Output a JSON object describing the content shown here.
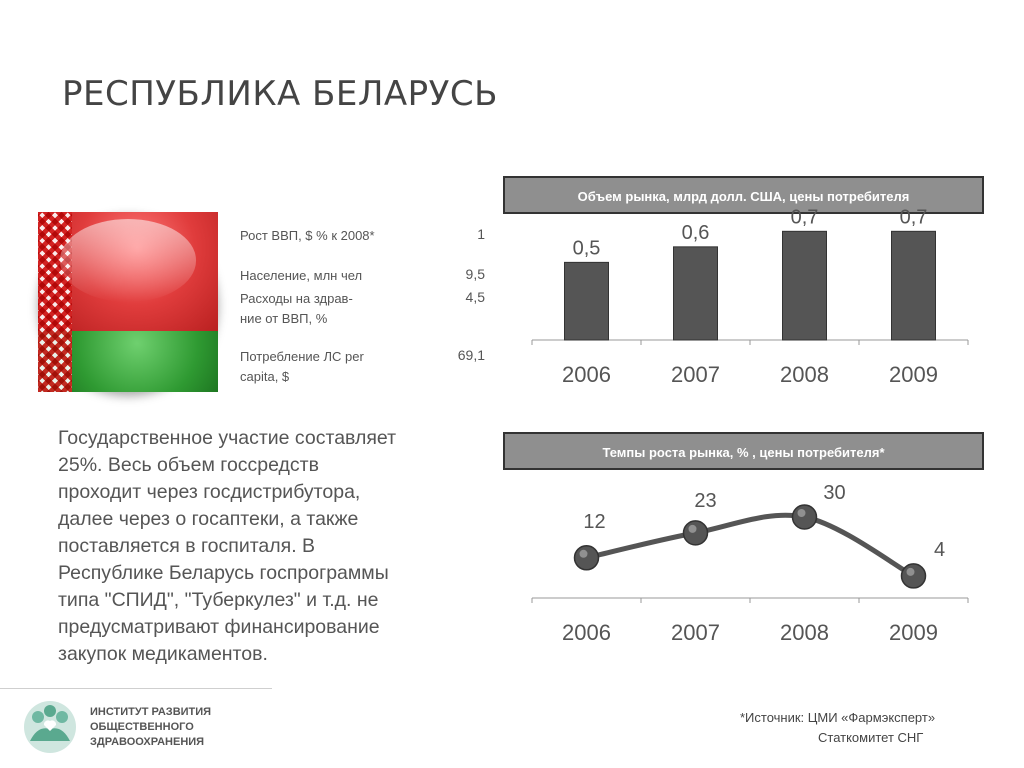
{
  "title": "РЕСПУБЛИКА БЕЛАРУСЬ",
  "stats": [
    {
      "label": "Рост ВВП, $ % к 2008*",
      "value": "1"
    },
    {
      "label": "Население, млн чел",
      "value": "9,5"
    },
    {
      "label": "Расходы на здрав-\nние от ВВП, %",
      "value": "4,5"
    },
    {
      "label": "Потребление ЛС per\ncapita, $",
      "value": "69,1"
    }
  ],
  "description": "Государственное участие составляет\n25%. Весь объем госсредств\nпроходит через госдистрибутора,\nдалее через о госаптеки, а также\nпоставляется в госпиталя. В\nРеспублике Беларусь  госпрограммы\nтипа \"СПИД\", \"Туберкулез\" и т.д. не\nпредусматривают финансирование\nзакупок медикаментов.",
  "logo_text": "ИНСТИТУТ РАЗВИТИЯ\nОБЩЕСТВЕННОГО\nЗДРАВООХРАНЕНИЯ",
  "source": {
    "line1": "*Источник: ЦМИ «Фармэксперт»",
    "line2": "Статкомитет СНГ"
  },
  "colors": {
    "bar": "#555555",
    "line": "#555555",
    "header_bg": "#8f8f8f"
  },
  "chart_data": [
    {
      "type": "bar",
      "title": "Объем рынка, млрд долл. США, цены потребителя",
      "categories": [
        "2006",
        "2007",
        "2008",
        "2009"
      ],
      "values": [
        0.5,
        0.6,
        0.7,
        0.7
      ],
      "labels": [
        "0,5",
        "0,6",
        "0,7",
        "0,7"
      ]
    },
    {
      "type": "line",
      "title": "Темпы роста рынка, % , цены потребителя*",
      "categories": [
        "2006",
        "2007",
        "2008",
        "2009"
      ],
      "values": [
        12,
        23,
        30,
        4
      ],
      "labels": [
        "12",
        "23",
        "30",
        "4"
      ]
    }
  ]
}
